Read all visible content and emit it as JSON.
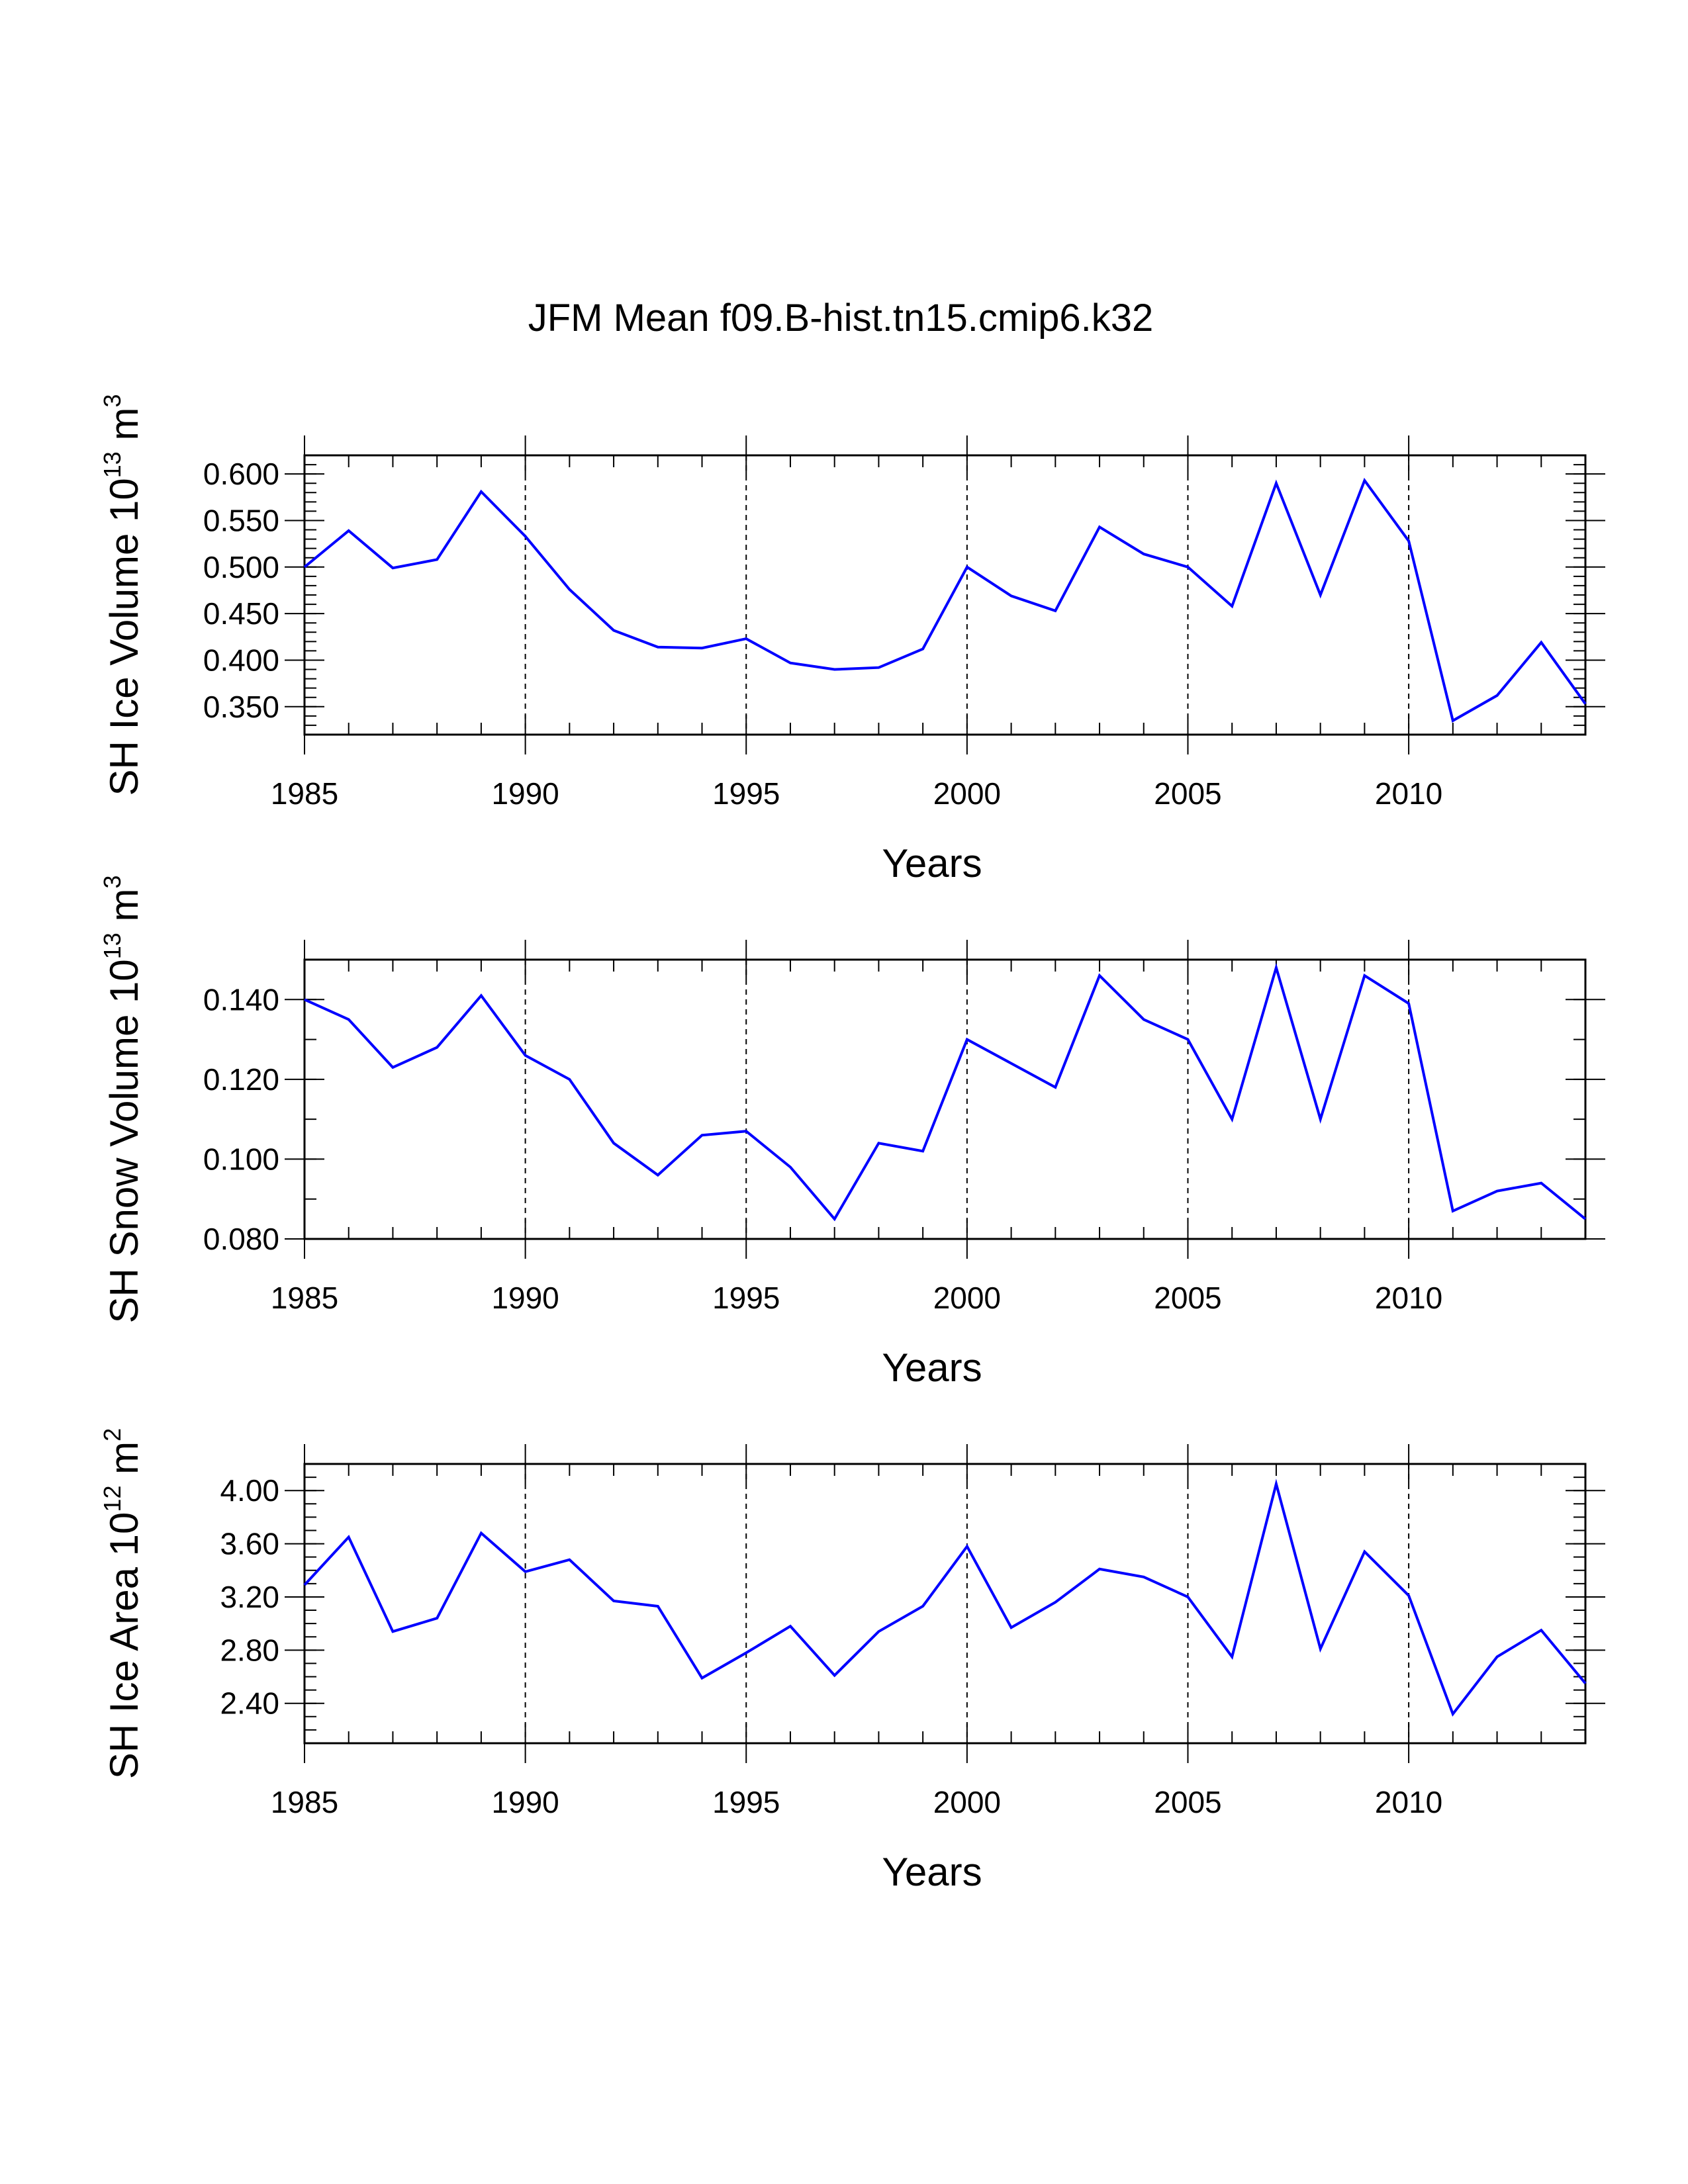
{
  "figure_title": "JFM Mean f09.B-hist.tn15.cmip6.k32",
  "line_color": "#0000ff",
  "grid_years": [
    1990,
    1995,
    2000,
    2005,
    2010
  ],
  "chart_data": [
    {
      "type": "line",
      "ylabel_text": "SH Ice Volume 10",
      "ylabel_exp": "13",
      "ylabel_unit": " m",
      "ylabel_unit_exp": "3",
      "xlabel": "Years",
      "xlim": [
        1985,
        2014
      ],
      "ylim": [
        0.32,
        0.62
      ],
      "x_ticks": [
        "1985",
        "1990",
        "1995",
        "2000",
        "2005",
        "2010"
      ],
      "y_ticks": [
        "0.350",
        "0.400",
        "0.450",
        "0.500",
        "0.550",
        "0.600"
      ],
      "y_tick_values": [
        0.35,
        0.4,
        0.45,
        0.5,
        0.55,
        0.6
      ],
      "y_minor_step": 0.01,
      "x": [
        1985,
        1986,
        1987,
        1988,
        1989,
        1990,
        1991,
        1992,
        1993,
        1994,
        1995,
        1996,
        1997,
        1998,
        1999,
        2000,
        2001,
        2002,
        2003,
        2004,
        2005,
        2006,
        2007,
        2008,
        2009,
        2010,
        2011,
        2012,
        2013,
        2014
      ],
      "series": [
        {
          "name": "SH Ice Volume",
          "values": [
            0.5,
            0.539,
            0.499,
            0.508,
            0.581,
            0.533,
            0.476,
            0.432,
            0.414,
            0.413,
            0.423,
            0.397,
            0.39,
            0.392,
            0.412,
            0.5,
            0.469,
            0.453,
            0.543,
            0.514,
            0.5,
            0.458,
            0.59,
            0.47,
            0.593,
            0.528,
            0.335,
            0.362,
            0.419,
            0.353
          ]
        }
      ]
    },
    {
      "type": "line",
      "ylabel_text": "SH Snow Volume 10",
      "ylabel_exp": "13",
      "ylabel_unit": " m",
      "ylabel_unit_exp": "3",
      "xlabel": "Years",
      "xlim": [
        1985,
        2014
      ],
      "ylim": [
        0.08,
        0.15
      ],
      "x_ticks": [
        "1985",
        "1990",
        "1995",
        "2000",
        "2005",
        "2010"
      ],
      "y_ticks": [
        "0.080",
        "0.100",
        "0.120",
        "0.140"
      ],
      "y_tick_values": [
        0.08,
        0.1,
        0.12,
        0.14
      ],
      "y_minor_step": 0.01,
      "x": [
        1985,
        1986,
        1987,
        1988,
        1989,
        1990,
        1991,
        1992,
        1993,
        1994,
        1995,
        1996,
        1997,
        1998,
        1999,
        2000,
        2001,
        2002,
        2003,
        2004,
        2005,
        2006,
        2007,
        2008,
        2009,
        2010,
        2011,
        2012,
        2013,
        2014
      ],
      "series": [
        {
          "name": "SH Snow Volume",
          "values": [
            0.14,
            0.135,
            0.123,
            0.128,
            0.141,
            0.126,
            0.12,
            0.104,
            0.096,
            0.106,
            0.107,
            0.098,
            0.085,
            0.104,
            0.102,
            0.13,
            0.124,
            0.118,
            0.146,
            0.135,
            0.13,
            0.11,
            0.148,
            0.11,
            0.146,
            0.139,
            0.087,
            0.092,
            0.094,
            0.085
          ]
        }
      ]
    },
    {
      "type": "line",
      "ylabel_text": "SH Ice Area 10",
      "ylabel_exp": "12",
      "ylabel_unit": " m",
      "ylabel_unit_exp": "2",
      "xlabel": "Years",
      "xlim": [
        1985,
        2014
      ],
      "ylim": [
        2.1,
        4.2
      ],
      "x_ticks": [
        "1985",
        "1990",
        "1995",
        "2000",
        "2005",
        "2010"
      ],
      "y_ticks": [
        "2.40",
        "2.80",
        "3.20",
        "3.60",
        "4.00"
      ],
      "y_tick_values": [
        2.4,
        2.8,
        3.2,
        3.6,
        4.0
      ],
      "y_minor_step": 0.1,
      "x": [
        1985,
        1986,
        1987,
        1988,
        1989,
        1990,
        1991,
        1992,
        1993,
        1994,
        1995,
        1996,
        1997,
        1998,
        1999,
        2000,
        2001,
        2002,
        2003,
        2004,
        2005,
        2006,
        2007,
        2008,
        2009,
        2010,
        2011,
        2012,
        2013,
        2014
      ],
      "series": [
        {
          "name": "SH Ice Area",
          "values": [
            3.29,
            3.65,
            2.94,
            3.04,
            3.68,
            3.39,
            3.48,
            3.17,
            3.13,
            2.59,
            2.78,
            2.98,
            2.61,
            2.94,
            3.13,
            3.58,
            2.97,
            3.16,
            3.41,
            3.35,
            3.2,
            2.75,
            4.05,
            2.81,
            3.54,
            3.21,
            2.32,
            2.75,
            2.95,
            2.55
          ]
        }
      ]
    }
  ]
}
